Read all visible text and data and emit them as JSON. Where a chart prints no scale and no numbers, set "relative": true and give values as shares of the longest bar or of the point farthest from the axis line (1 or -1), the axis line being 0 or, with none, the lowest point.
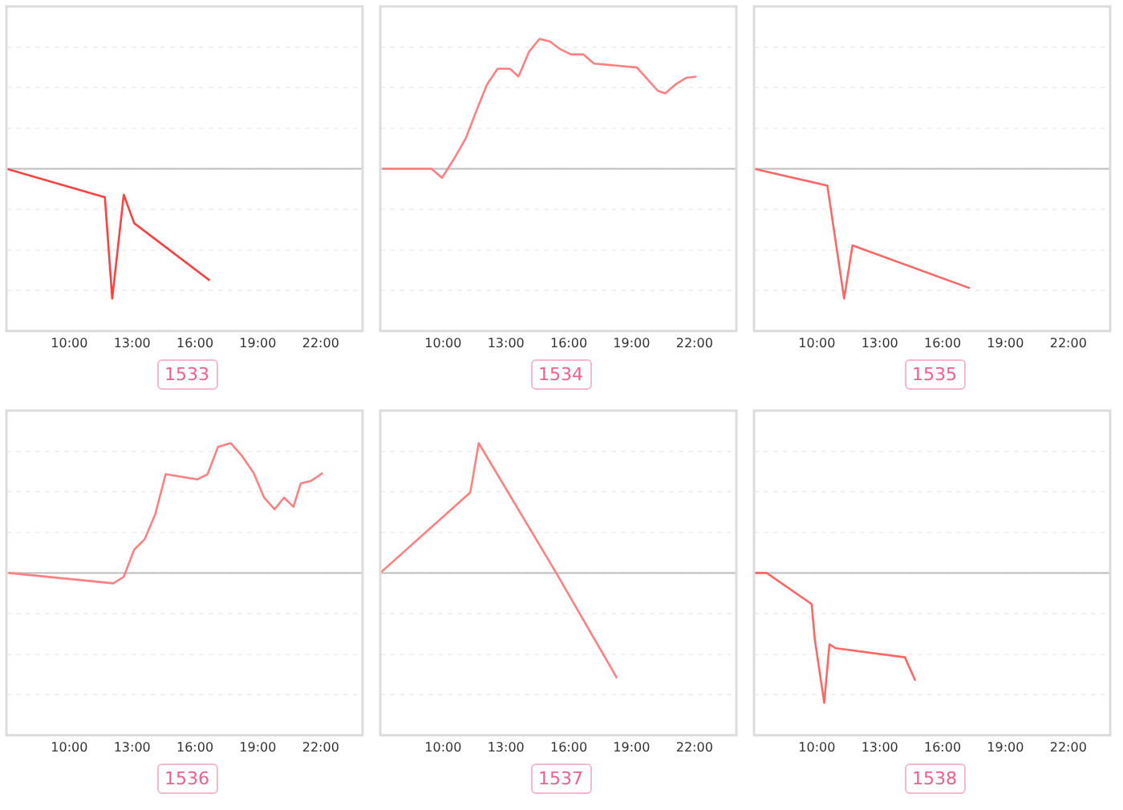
{
  "chart_data": [
    {
      "type": "line",
      "title": "1533",
      "relative": true,
      "grid": "y",
      "marker": "none",
      "line_style": "solid",
      "legend": false,
      "xlim": [
        7,
        24
      ],
      "xticks": [
        {
          "value": 10,
          "label": "10:00"
        },
        {
          "value": 13,
          "label": "13:00"
        },
        {
          "value": 16,
          "label": "16:00"
        },
        {
          "value": 19,
          "label": "19:00"
        },
        {
          "value": 22,
          "label": "22:00"
        }
      ],
      "series": [
        {
          "color": "#ff4040",
          "x": [
            7,
            11.7,
            12.05,
            12.6,
            13.1,
            16.7
          ],
          "values": [
            0,
            -0.22,
            -1,
            -0.2,
            -0.42,
            -0.86
          ]
        }
      ]
    },
    {
      "type": "line",
      "title": "1534",
      "relative": true,
      "grid": "y",
      "marker": "none",
      "line_style": "solid",
      "legend": false,
      "xlim": [
        7,
        24
      ],
      "xticks": [
        {
          "value": 10,
          "label": "10:00"
        },
        {
          "value": 13,
          "label": "13:00"
        },
        {
          "value": 16,
          "label": "16:00"
        },
        {
          "value": 19,
          "label": "19:00"
        },
        {
          "value": 22,
          "label": "22:00"
        }
      ],
      "series": [
        {
          "color": "#ff8080",
          "x": [
            7.1,
            9.45,
            9.95,
            10.5,
            11.1,
            11.6,
            12.1,
            12.6,
            13.2,
            13.6,
            14.1,
            14.6,
            15.1,
            15.6,
            16.1,
            16.7,
            17.2,
            19.25,
            19.75,
            20.25,
            20.6,
            21.1,
            21.6,
            22.1
          ],
          "values": [
            0,
            0,
            -0.07,
            0.07,
            0.24,
            0.45,
            0.65,
            0.77,
            0.77,
            0.71,
            0.9,
            1,
            0.98,
            0.92,
            0.88,
            0.88,
            0.81,
            0.78,
            0.69,
            0.6,
            0.58,
            0.65,
            0.7,
            0.71
          ]
        }
      ]
    },
    {
      "type": "line",
      "title": "1535",
      "relative": true,
      "grid": "y",
      "marker": "none",
      "line_style": "solid",
      "legend": false,
      "xlim": [
        7,
        24
      ],
      "xticks": [
        {
          "value": 10,
          "label": "10:00"
        },
        {
          "value": 13,
          "label": "13:00"
        },
        {
          "value": 16,
          "label": "16:00"
        },
        {
          "value": 19,
          "label": "19:00"
        },
        {
          "value": 22,
          "label": "22:00"
        }
      ],
      "series": [
        {
          "color": "#ff6666",
          "x": [
            7,
            10.5,
            11.3,
            11.7,
            17.3
          ],
          "values": [
            0,
            -0.13,
            -1,
            -0.59,
            -0.92
          ]
        }
      ]
    },
    {
      "type": "line",
      "title": "1536",
      "relative": true,
      "grid": "y",
      "marker": "none",
      "line_style": "solid",
      "legend": false,
      "xlim": [
        7,
        24
      ],
      "xticks": [
        {
          "value": 10,
          "label": "10:00"
        },
        {
          "value": 13,
          "label": "13:00"
        },
        {
          "value": 16,
          "label": "16:00"
        },
        {
          "value": 19,
          "label": "19:00"
        },
        {
          "value": 22,
          "label": "22:00"
        }
      ],
      "series": [
        {
          "color": "#ff8080",
          "x": [
            7.1,
            12.1,
            12.6,
            13.1,
            13.6,
            14.1,
            14.6,
            16.1,
            16.6,
            17.1,
            17.7,
            18.25,
            18.8,
            19.3,
            19.8,
            20.25,
            20.7,
            21.05,
            21.55,
            22.1
          ],
          "values": [
            0,
            -0.08,
            -0.03,
            0.18,
            0.26,
            0.45,
            0.76,
            0.72,
            0.76,
            0.97,
            1,
            0.9,
            0.77,
            0.58,
            0.49,
            0.58,
            0.51,
            0.69,
            0.71,
            0.77
          ]
        }
      ]
    },
    {
      "type": "line",
      "title": "1537",
      "relative": true,
      "grid": "y",
      "marker": "none",
      "line_style": "solid",
      "legend": false,
      "xlim": [
        7,
        24
      ],
      "xticks": [
        {
          "value": 10,
          "label": "10:00"
        },
        {
          "value": 13,
          "label": "13:00"
        },
        {
          "value": 16,
          "label": "16:00"
        },
        {
          "value": 19,
          "label": "19:00"
        },
        {
          "value": 22,
          "label": "22:00"
        }
      ],
      "series": [
        {
          "color": "#ff8080",
          "x": [
            7,
            11.3,
            11.7,
            15.4,
            18.3
          ],
          "values": [
            0,
            0.62,
            1,
            0,
            -0.81
          ]
        }
      ]
    },
    {
      "type": "line",
      "title": "1538",
      "relative": true,
      "grid": "y",
      "marker": "none",
      "line_style": "solid",
      "legend": false,
      "xlim": [
        7,
        24
      ],
      "xticks": [
        {
          "value": 10,
          "label": "10:00"
        },
        {
          "value": 13,
          "label": "13:00"
        },
        {
          "value": 16,
          "label": "16:00"
        },
        {
          "value": 19,
          "label": "19:00"
        },
        {
          "value": 22,
          "label": "22:00"
        }
      ],
      "series": [
        {
          "color": "#ff6666",
          "x": [
            7,
            7.6,
            9.75,
            9.9,
            10.35,
            10.6,
            10.9,
            14.2,
            14.7
          ],
          "values": [
            0,
            0,
            -0.24,
            -0.51,
            -1,
            -0.55,
            -0.58,
            -0.65,
            -0.83
          ]
        }
      ]
    }
  ]
}
